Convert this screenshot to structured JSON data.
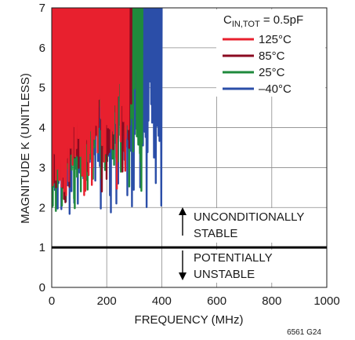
{
  "chart_data": {
    "type": "line",
    "title": "",
    "xlabel": "FREQUENCY (MHz)",
    "ylabel": "MAGNITUDE K (UNITLESS)",
    "xlim": [
      0,
      1000
    ],
    "ylim": [
      0,
      7
    ],
    "x_ticks": [
      "0",
      "200",
      "400",
      "600",
      "800",
      "1000"
    ],
    "y_ticks": [
      "0",
      "1",
      "2",
      "3",
      "4",
      "5",
      "6",
      "7"
    ],
    "grid": true,
    "legend_title_main": "C",
    "legend_title_sub": "IN,TOT",
    "legend_title_value": " = 0.5pF",
    "legend_position": "top-right",
    "series": [
      {
        "name": "125°C",
        "color": "#e8202e",
        "x_range": [
          0,
          280
        ],
        "min_value": 2.1
      },
      {
        "name": "85°C",
        "color": "#8b0a20",
        "x_range": [
          0,
          290
        ],
        "min_value": 2.1
      },
      {
        "name": "25°C",
        "color": "#1f8a3c",
        "x_range": [
          0,
          330
        ],
        "min_value": 1.8
      },
      {
        "name": "–40°C",
        "color": "#2b4ea8",
        "x_range": [
          0,
          400
        ],
        "min_value": 1.5
      }
    ],
    "stability_boundary": {
      "y": 1,
      "color": "#000000"
    },
    "annotations": {
      "upper_line1": "UNCONDITIONALLY",
      "upper_line2": "STABLE",
      "lower_line1": "POTENTIALLY",
      "lower_line2": "UNSTABLE"
    },
    "figure_code": "6561 G24"
  }
}
